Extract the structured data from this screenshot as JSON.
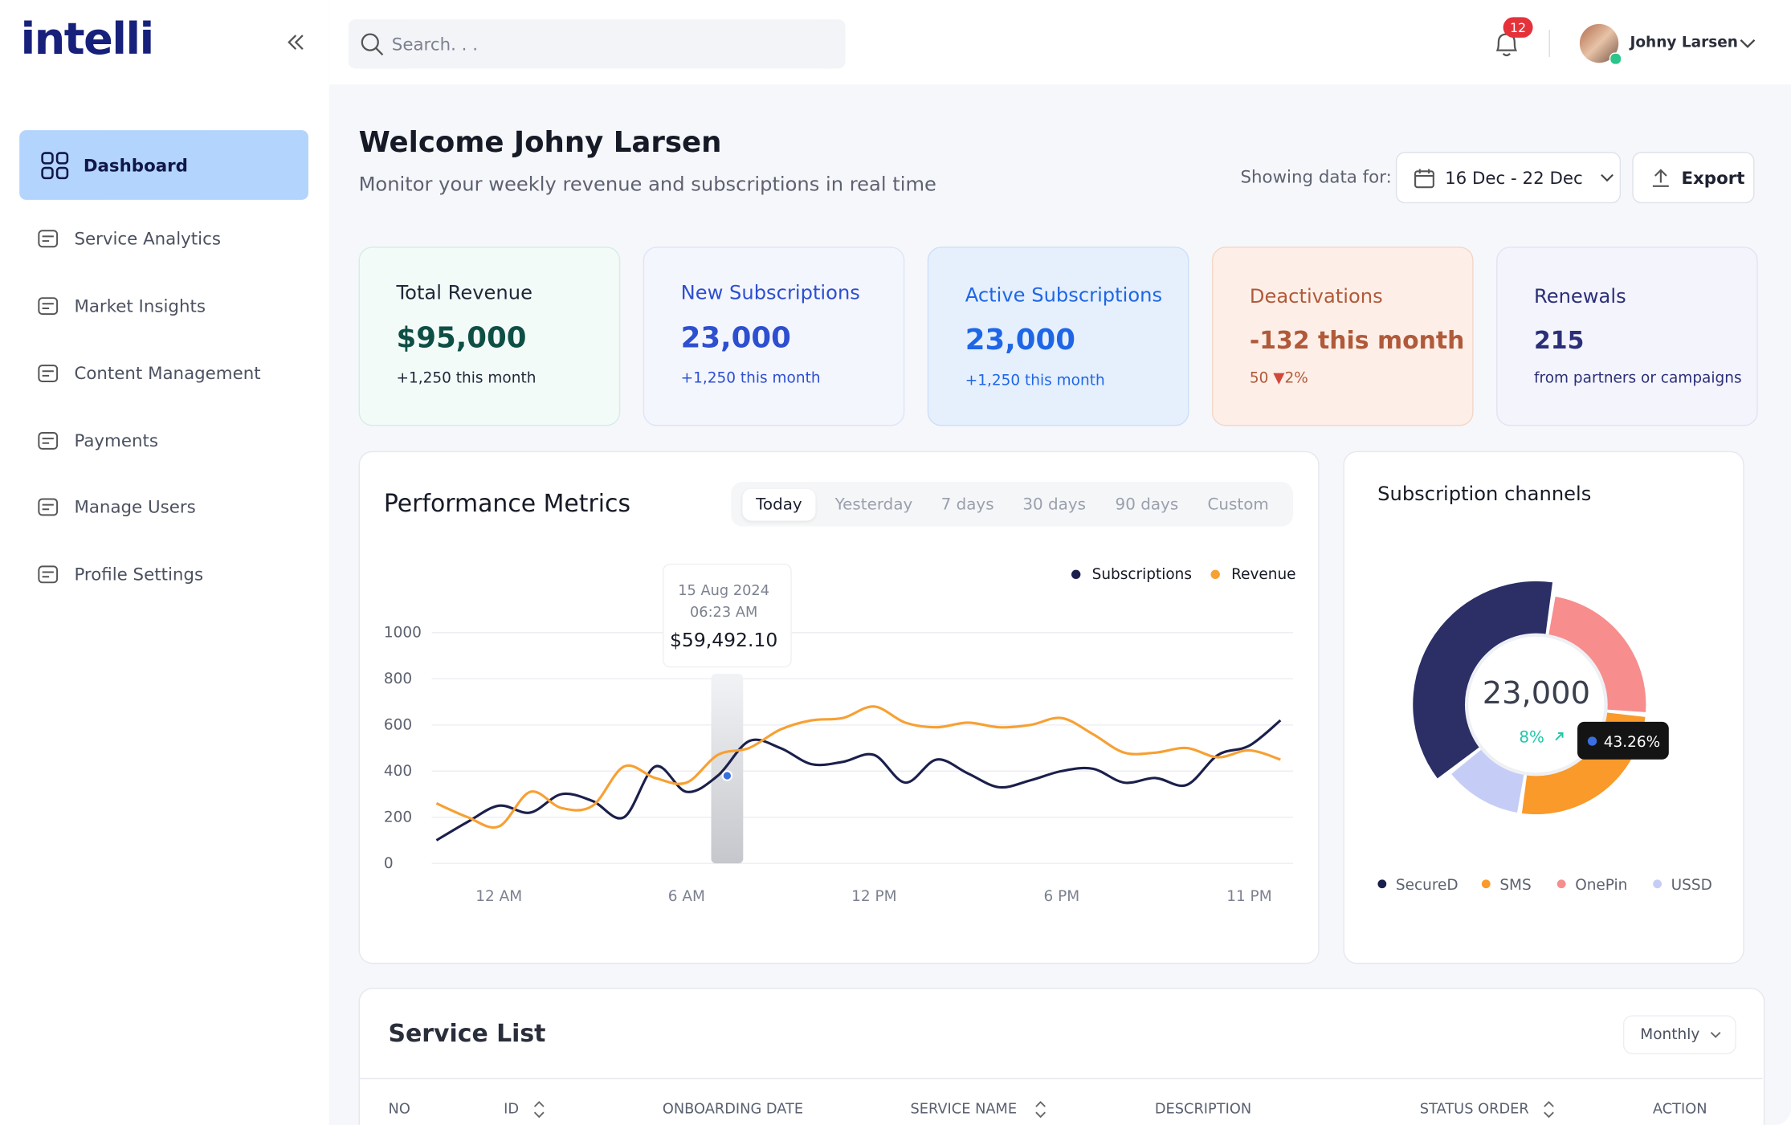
{
  "sidebar": {
    "logo": "intelli",
    "nav": [
      "Dashboard",
      "Service Analytics",
      "Market Insights",
      "Content Management",
      "Payments",
      "Manage Users",
      "Profile Settings"
    ]
  },
  "search": {
    "placeholder": "Search. . ."
  },
  "header": {
    "notifications": 12,
    "user": "Johny Larsen"
  },
  "welcome": {
    "title": "Welcome Johny Larsen",
    "subtitle": "Monitor your weekly revenue and subscriptions in real time",
    "showing_label": "Showing data for:",
    "date_range": "16 Dec - 22 Dec",
    "export": "Export"
  },
  "cards": [
    {
      "title": "Total Revenue",
      "value": "$95,000",
      "note": "+1,250 this month"
    },
    {
      "title": "New Subscriptions",
      "value": "23,000",
      "note": "+1,250 this month"
    },
    {
      "title": "Active Subscriptions",
      "value": "23,000",
      "note": "+1,250 this month"
    },
    {
      "title": "Deactivations",
      "value": "-132 this month",
      "note": "50",
      "change": "2%"
    },
    {
      "title": "Renewals",
      "value": "215",
      "note": "from partners or campaigns"
    }
  ],
  "performance": {
    "title": "Performance Metrics",
    "ranges": [
      "Today",
      "Yesterday",
      "7 days",
      "30 days",
      "90 days",
      "Custom"
    ],
    "chart_data": {
      "type": "line",
      "x": [
        -2,
        -1,
        0,
        1,
        2,
        3,
        4,
        5,
        6,
        7,
        8,
        9,
        10,
        11,
        12,
        13,
        14,
        15,
        16,
        17,
        18,
        19,
        20,
        21,
        22,
        23,
        24,
        25
      ],
      "xlim": [
        -2.15,
        25.4
      ],
      "xticks": [
        {
          "value": 0,
          "label": "12 AM"
        },
        {
          "value": 6,
          "label": "6 AM"
        },
        {
          "value": 12,
          "label": "12 PM"
        },
        {
          "value": 18,
          "label": "6 PM"
        },
        {
          "value": 24,
          "label": "11 PM"
        }
      ],
      "ylim": [
        0,
        1000
      ],
      "yticks": [
        0,
        200,
        400,
        600,
        800,
        1000
      ],
      "grid": true,
      "legend": "top-right",
      "series": [
        {
          "name": "Subscriptions",
          "color": "#1b1f4b",
          "values": [
            100,
            180,
            250,
            220,
            300,
            270,
            200,
            420,
            310,
            380,
            530,
            500,
            430,
            440,
            470,
            350,
            450,
            390,
            330,
            360,
            400,
            410,
            350,
            370,
            340,
            470,
            510,
            620
          ]
        },
        {
          "name": "Revenue",
          "color": "#f7a033",
          "values": [
            260,
            200,
            160,
            310,
            240,
            250,
            420,
            370,
            350,
            470,
            500,
            580,
            620,
            630,
            680,
            610,
            590,
            610,
            590,
            600,
            630,
            560,
            480,
            480,
            500,
            460,
            490,
            450
          ]
        }
      ],
      "tooltip": {
        "x": 7.3,
        "y": 380,
        "date": "15 Aug 2024",
        "time": "06:23 AM",
        "value": "$59,492.10"
      }
    }
  },
  "channels": {
    "title": "Subscription channels",
    "chart_data": {
      "type": "donut",
      "center": "23,000",
      "change": "8%",
      "tooltip": "43.26%",
      "categories": [
        "SecureD",
        "OnePin",
        "SMS",
        "USSD"
      ],
      "values": [
        38,
        24,
        26,
        12
      ],
      "colors": [
        "#2b2f66",
        "#f78d8d",
        "#f99a2a",
        "#c5cdf7"
      ],
      "legend_order": [
        0,
        2,
        1,
        3
      ]
    }
  },
  "service_list": {
    "title": "Service List",
    "filter": "Monthly",
    "columns": [
      "NO",
      "ID",
      "ONBOARDING DATE",
      "SERVICE NAME",
      "DESCRIPTION",
      "STATUS ORDER",
      "ACTION"
    ]
  }
}
